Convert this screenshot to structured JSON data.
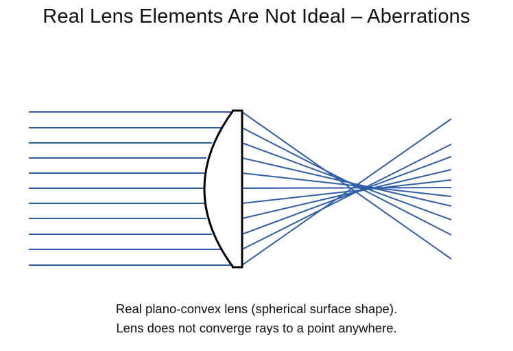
{
  "title": "Real Lens Elements Are Not Ideal – Aberrations",
  "caption": {
    "line1": "Real plano-convex lens (spherical surface shape).",
    "line2": "Lens does not converge rays to a point anywhere."
  },
  "colors": {
    "ray": "#2f5ea8",
    "lens": "#000000",
    "text": "#111111",
    "background": "#ffffff"
  },
  "diagram": {
    "lens_type": "plano-convex",
    "surface_shape": "spherical",
    "ray_count": 11
  }
}
